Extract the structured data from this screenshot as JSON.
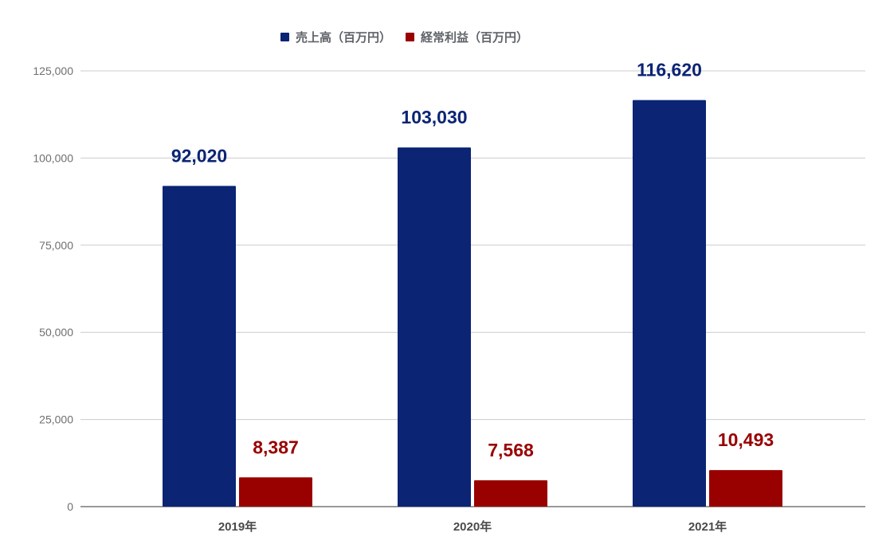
{
  "chart_data": {
    "type": "bar",
    "categories": [
      "2019年",
      "2020年",
      "2021年"
    ],
    "series": [
      {
        "name": "売上高（百万円）",
        "values": [
          92020,
          103030,
          116620
        ],
        "data_labels": [
          "92,020",
          "103,030",
          "116,620"
        ],
        "color": "#0b2474"
      },
      {
        "name": "経常利益（百万円）",
        "values": [
          8387,
          7568,
          10493
        ],
        "data_labels": [
          "8,387",
          "7,568",
          "10,493"
        ],
        "color": "#990000"
      }
    ],
    "y_ticks": [
      0,
      25000,
      50000,
      75000,
      100000,
      125000
    ],
    "y_tick_labels": [
      "0",
      "25,000",
      "50,000",
      "75,000",
      "100,000",
      "125,000"
    ],
    "ylim": [
      0,
      125000
    ],
    "grid": true,
    "legend_position": "top-center"
  }
}
